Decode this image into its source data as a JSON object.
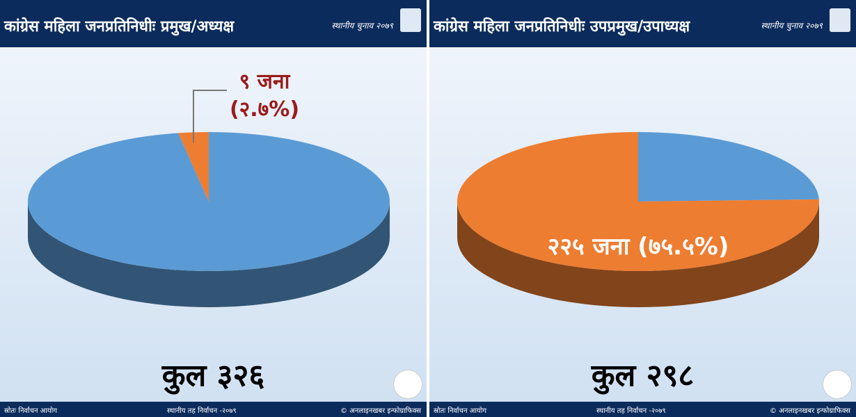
{
  "chart_data": [
    {
      "type": "pie",
      "title": "कांग्रेस महिला जनप्रतिनिधीः प्रमुख/अध्यक्ष",
      "badge": "स्थानीय चुनाव २०७९",
      "values": [
        97.3,
        2.7
      ],
      "colors": [
        "#5b9bd5",
        "#ed7d31"
      ],
      "value_labels": [
        null,
        "९ जना\n(२.७%)"
      ],
      "total": "कुल ३२६",
      "source": "स्रोतः निर्वाचन आयोग",
      "event": "स्थानीय तह निर्वाचन -२०७९",
      "credit": "© अनलाइनखबर इन्फोग्राफिक्स"
    },
    {
      "type": "pie",
      "title": "कांग्रेस महिला जनप्रतिनिधीः उपप्रमुख/उपाध्यक्ष",
      "badge": "स्थानीय चुनाव २०७९",
      "values": [
        24.5,
        75.5
      ],
      "colors": [
        "#5b9bd5",
        "#ed7d31"
      ],
      "value_labels": [
        null,
        "२२५ जना (७५.५%)"
      ],
      "total": "कुल २९८",
      "source": "स्रोतः निर्वाचन आयोग",
      "event": "स्थानीय तह निर्वाचन -२०७९",
      "credit": "© अनलाइनखबर इन्फोग्राफिक्स"
    }
  ]
}
